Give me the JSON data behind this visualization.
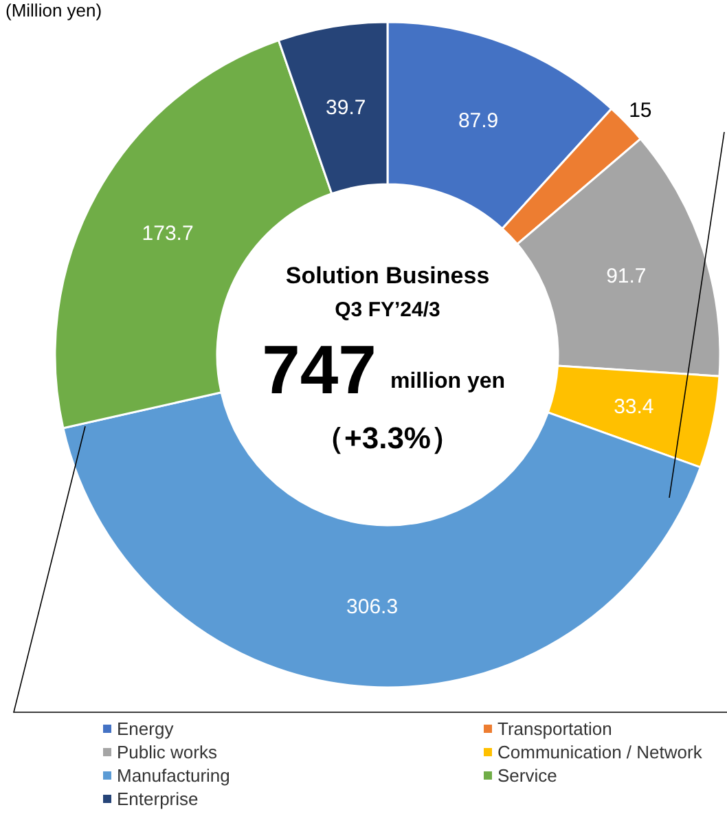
{
  "chart_data": {
    "type": "donut",
    "title": "Solution Business",
    "subtitle": "Q3 FY’24/3",
    "annotations": [
      "(Million yen)",
      "747",
      "million yen",
      "（+3.3%）"
    ],
    "categories": [
      "Energy",
      "Transportation",
      "Public works",
      "Communication / Network",
      "Manufacturing",
      "Service",
      "Enterprise"
    ],
    "values": [
      87.9,
      15,
      91.7,
      33.4,
      306.3,
      173.7,
      39.7
    ],
    "colors": [
      "#4472c4",
      "#ed7d31",
      "#a5a5a5",
      "#ffc000",
      "#5b9bd5",
      "#70ad47",
      "#264478"
    ],
    "data_labels": true,
    "legend": "bottom"
  }
}
